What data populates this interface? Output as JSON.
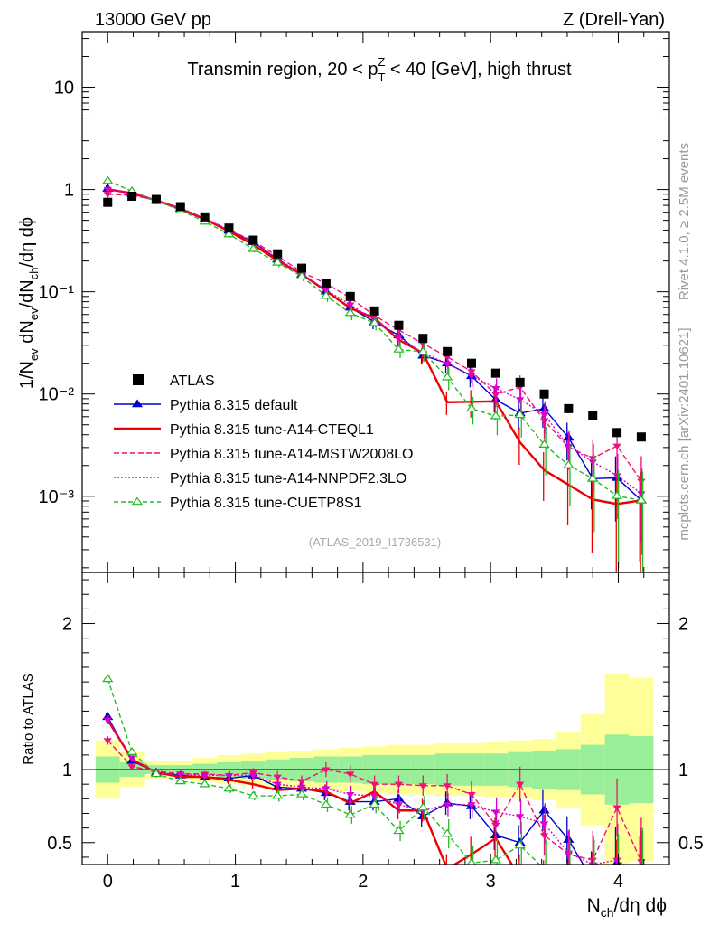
{
  "header": {
    "left": "13000 GeV pp",
    "right": "Z (Drell-Yan)"
  },
  "side": {
    "rivet": "Rivet 4.1.0, ≥ 2.5M events",
    "mcplots": "mcplots.cern.ch [arXiv:2401.10621]"
  },
  "chart_data": {
    "type": "line",
    "title": "Transmin region, 20 < p_T^Z < 40 [GeV], high thrust",
    "watermark": "(ATLAS_2019_I1736531)",
    "xlabel": "N_ch/dη dϕ",
    "ylabel": "1/N_ev dN_ev/dN_ch/dη dϕ",
    "ratio_ylabel": "Ratio to ATLAS",
    "xlim": [
      -0.2,
      4.4
    ],
    "ylim": [
      0.00018,
      35
    ],
    "yscale": "log",
    "ratio_ylim": [
      0.35,
      2.35
    ],
    "x_ticks": [
      "0",
      "1",
      "2",
      "3",
      "4"
    ],
    "y_ticks": [
      "10⁻³",
      "10⁻²",
      "10⁻¹",
      "1",
      "10"
    ],
    "ratio_ticks": [
      "0.5",
      "1",
      "2"
    ],
    "x": [
      0,
      0.19,
      0.38,
      0.57,
      0.76,
      0.95,
      1.14,
      1.33,
      1.52,
      1.71,
      1.9,
      2.09,
      2.28,
      2.47,
      2.66,
      2.85,
      3.04,
      3.23,
      3.42,
      3.61,
      3.8,
      3.99,
      4.18
    ],
    "data": {
      "name": "ATLAS",
      "values": [
        0.75,
        0.86,
        0.8,
        0.68,
        0.54,
        0.42,
        0.32,
        0.235,
        0.17,
        0.12,
        0.09,
        0.065,
        0.047,
        0.035,
        0.026,
        0.02,
        0.016,
        0.013,
        0.01,
        0.0072,
        0.0062,
        0.0042,
        0.0038
      ]
    },
    "band_inner_half": [
      0.09,
      0.05,
      0.03,
      0.03,
      0.04,
      0.05,
      0.06,
      0.07,
      0.08,
      0.09,
      0.09,
      0.1,
      0.1,
      0.1,
      0.11,
      0.11,
      0.11,
      0.12,
      0.13,
      0.14,
      0.17,
      0.24,
      0.23
    ],
    "band_outer_half": [
      0.2,
      0.12,
      0.06,
      0.06,
      0.08,
      0.1,
      0.11,
      0.12,
      0.13,
      0.14,
      0.15,
      0.16,
      0.17,
      0.17,
      0.18,
      0.18,
      0.19,
      0.2,
      0.21,
      0.26,
      0.38,
      0.66,
      0.63
    ],
    "series": [
      {
        "name": "Pythia 8.315 default",
        "color": "#0000cc",
        "dash": "",
        "marker": "triangle-filled",
        "ratio": [
          1.36,
          1.06,
          0.98,
          0.96,
          0.95,
          0.94,
          0.96,
          0.88,
          0.87,
          0.84,
          0.78,
          0.78,
          0.8,
          0.68,
          0.77,
          0.75,
          0.55,
          0.5,
          0.72,
          0.52,
          0.24,
          0.36,
          0.24
        ],
        "err": [
          0.03,
          0.02,
          0.01,
          0.02,
          0.02,
          0.03,
          0.03,
          0.04,
          0.04,
          0.05,
          0.06,
          0.06,
          0.06,
          0.07,
          0.08,
          0.09,
          0.1,
          0.12,
          0.14,
          0.16,
          0.2,
          0.25,
          0.3
        ]
      },
      {
        "name": "Pythia 8.315 tune-A14-CTEQL1",
        "color": "#ee0000",
        "dash": "",
        "marker": "none",
        "ratio": [
          1.34,
          1.07,
          0.98,
          0.95,
          0.95,
          0.93,
          0.9,
          0.86,
          0.87,
          0.85,
          0.77,
          0.85,
          0.72,
          0.72,
          0.32,
          0.42,
          0.53,
          0.26,
          0.18,
          0.18,
          0.15,
          0.2,
          0.24
        ],
        "err": [
          0.03,
          0.02,
          0.01,
          0.02,
          0.02,
          0.03,
          0.03,
          0.04,
          0.04,
          0.05,
          0.06,
          0.06,
          0.06,
          0.08,
          0.1,
          0.12,
          0.14,
          0.16,
          0.2,
          0.24,
          0.28,
          0.32,
          0.36
        ]
      },
      {
        "name": "Pythia 8.315 tune-A14-MSTW2008LO",
        "color": "#ee1177",
        "dash": "6,3",
        "marker": "triangle-down",
        "ratio": [
          1.2,
          1.02,
          0.99,
          0.97,
          0.97,
          0.96,
          0.98,
          0.95,
          0.92,
          1.0,
          0.97,
          0.9,
          0.9,
          0.89,
          0.89,
          0.83,
          0.62,
          0.9,
          0.55,
          0.42,
          0.38,
          0.74,
          0.37
        ],
        "err": [
          0.03,
          0.02,
          0.01,
          0.02,
          0.02,
          0.03,
          0.03,
          0.04,
          0.04,
          0.05,
          0.06,
          0.06,
          0.06,
          0.07,
          0.08,
          0.09,
          0.1,
          0.12,
          0.14,
          0.16,
          0.2,
          0.2,
          0.3
        ]
      },
      {
        "name": "Pythia 8.315 tune-A14-NNPDF2.3LO",
        "color": "#dd00cc",
        "dash": "2,2",
        "marker": "triangle-down",
        "ratio": [
          1.34,
          1.08,
          0.97,
          0.97,
          0.96,
          0.96,
          0.96,
          0.9,
          0.88,
          0.87,
          0.83,
          0.82,
          0.76,
          0.72,
          0.76,
          0.76,
          0.71,
          0.68,
          0.63,
          0.43,
          0.35,
          0.38,
          0.28
        ],
        "err": [
          0.03,
          0.02,
          0.01,
          0.02,
          0.02,
          0.03,
          0.03,
          0.04,
          0.04,
          0.05,
          0.06,
          0.06,
          0.06,
          0.07,
          0.08,
          0.09,
          0.1,
          0.12,
          0.14,
          0.16,
          0.2,
          0.25,
          0.3
        ]
      },
      {
        "name": "Pythia 8.315 tune-CUETP8S1",
        "color": "#22bb22",
        "dash": "5,3",
        "marker": "triangle-open",
        "ratio": [
          1.62,
          1.12,
          0.97,
          0.92,
          0.9,
          0.87,
          0.82,
          0.82,
          0.83,
          0.76,
          0.69,
          0.76,
          0.58,
          0.74,
          0.56,
          0.36,
          0.38,
          0.48,
          0.32,
          0.28,
          0.24,
          0.24,
          0.24
        ],
        "err": [
          0.03,
          0.02,
          0.01,
          0.02,
          0.02,
          0.03,
          0.03,
          0.04,
          0.04,
          0.05,
          0.06,
          0.06,
          0.07,
          0.08,
          0.1,
          0.12,
          0.14,
          0.16,
          0.2,
          0.24,
          0.28,
          0.32,
          0.36
        ]
      }
    ]
  }
}
